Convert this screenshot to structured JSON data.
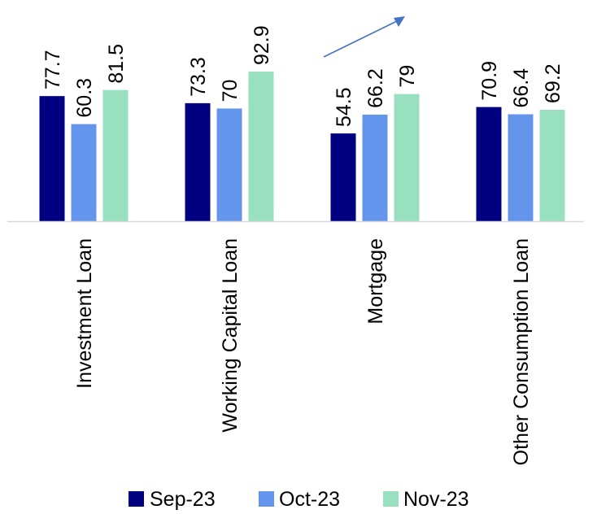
{
  "chart_data": {
    "type": "bar",
    "categories": [
      "Investment Loan",
      "Working Capital Loan",
      "Mortgage",
      "Other Consumption Loan"
    ],
    "series": [
      {
        "name": "Sep-23",
        "color": "#000080",
        "values": [
          77.7,
          73.3,
          54.5,
          70.9
        ]
      },
      {
        "name": "Oct-23",
        "color": "#6495ED",
        "values": [
          60.3,
          70,
          66.2,
          66.4
        ]
      },
      {
        "name": "Nov-23",
        "color": "#98E0C0",
        "values": [
          81.5,
          92.9,
          79,
          69.2
        ]
      }
    ],
    "value_labels": [
      [
        "77.7",
        "60.3",
        "81.5"
      ],
      [
        "73.3",
        "70",
        "92.9"
      ],
      [
        "54.5",
        "66.2",
        "79"
      ],
      [
        "70.9",
        "66.4",
        "69.2"
      ]
    ],
    "title": "",
    "xlabel": "",
    "ylabel": "",
    "ylim": [
      0,
      100
    ],
    "grid": false,
    "legend_position": "bottom",
    "annotation": "upward trend arrow above Mortgage",
    "axis_color": "#D9D9D9",
    "arrow_color": "#4472C4"
  }
}
